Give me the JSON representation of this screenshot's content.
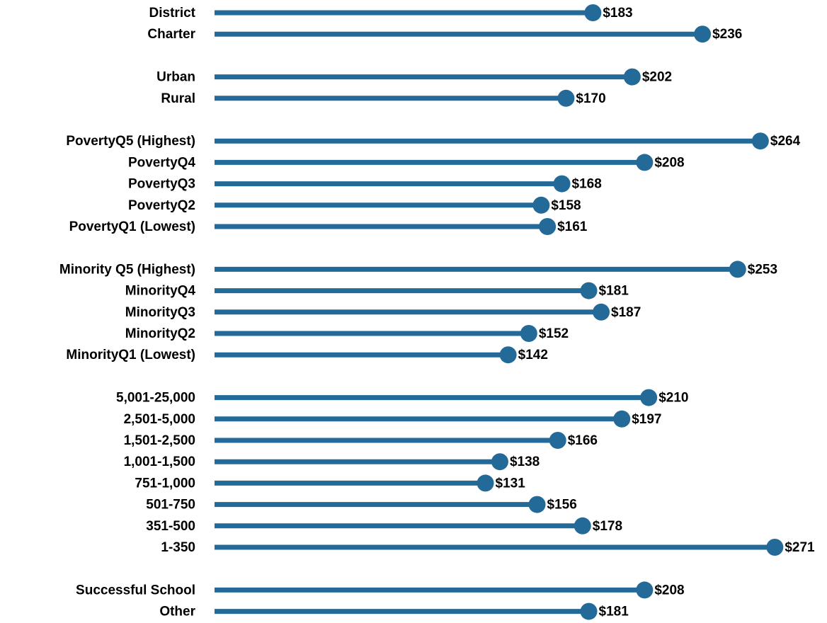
{
  "chart_data": {
    "type": "lollipop",
    "color": "#236a99",
    "categories": [
      "District",
      "Charter",
      null,
      "Urban",
      "Rural",
      null,
      "PovertyQ5 (Highest)",
      "PovertyQ4",
      "PovertyQ3",
      "PovertyQ2",
      "PovertyQ1 (Lowest)",
      null,
      "Minority Q5 (Highest)",
      "MinorityQ4",
      "MinorityQ3",
      "MinorityQ2",
      "MinorityQ1 (Lowest)",
      null,
      "5,001-25,000",
      "2,501-5,000",
      "1,501-2,500",
      "1,001-1,500",
      "751-1,000",
      "501-750",
      "351-500",
      "1-350",
      null,
      "Successful School",
      "Other"
    ],
    "values": [
      183,
      236,
      null,
      202,
      170,
      null,
      264,
      208,
      168,
      158,
      161,
      null,
      253,
      181,
      187,
      152,
      142,
      null,
      210,
      197,
      166,
      138,
      131,
      156,
      178,
      271,
      null,
      208,
      181
    ],
    "value_labels": [
      "$183",
      "$236",
      null,
      "$202",
      "$170",
      null,
      "$264",
      "$208",
      "$168",
      "$158",
      "$161",
      null,
      "$253",
      "$181",
      "$187",
      "$152",
      "$142",
      null,
      "$210",
      "$197",
      "$166",
      "$138",
      "$131",
      "$156",
      "$178",
      "$271",
      null,
      "$208",
      "$181"
    ]
  }
}
